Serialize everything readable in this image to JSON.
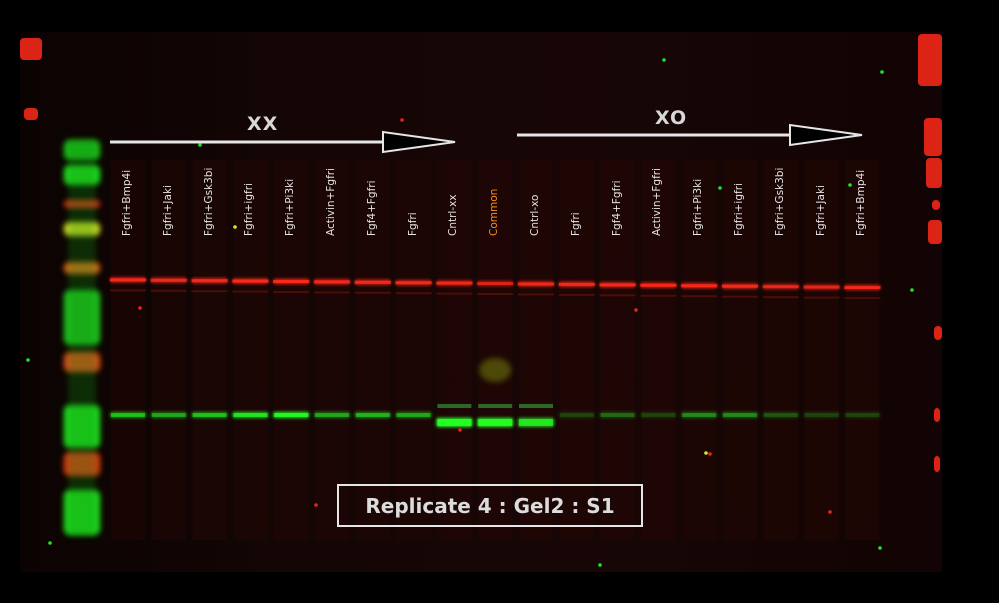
{
  "image": {
    "type": "western blot fluorescence scan",
    "colors": {
      "red_channel": "#ff2a1a",
      "green_channel": "#22ff22",
      "background": "#000000"
    }
  },
  "groups": [
    {
      "label": "XX"
    },
    {
      "label": "XO"
    }
  ],
  "lanes": [
    {
      "label": "Fgfri+Bmp4i",
      "group": "XX",
      "red": 0.85,
      "green": 0.55
    },
    {
      "label": "Fgfri+Jaki",
      "group": "XX",
      "red": 0.8,
      "green": 0.45
    },
    {
      "label": "Fgfri+Gsk3bi",
      "group": "XX",
      "red": 0.85,
      "green": 0.55
    },
    {
      "label": "Fgfri+igfri",
      "group": "XX",
      "red": 0.9,
      "green": 0.75
    },
    {
      "label": "Fgfri+Pi3ki",
      "group": "XX",
      "red": 0.9,
      "green": 0.9
    },
    {
      "label": "Activin+Fgfri",
      "group": "XX",
      "red": 0.85,
      "green": 0.45
    },
    {
      "label": "Fgf4+Fgfri",
      "group": "XX",
      "red": 0.85,
      "green": 0.5
    },
    {
      "label": "Fgfri",
      "group": "XX",
      "red": 0.85,
      "green": 0.45
    },
    {
      "label": "Cntrl-xx",
      "group": "XX",
      "red": 0.8,
      "green": 1.0
    },
    {
      "label": "Common",
      "group": "shared",
      "red": 0.65,
      "green": 0.95,
      "highlight": "#ff8c1a"
    },
    {
      "label": "Cntrl-xo",
      "group": "XO",
      "red": 0.8,
      "green": 0.75
    },
    {
      "label": "Fgfri",
      "group": "XO",
      "red": 0.85,
      "green": 0.15
    },
    {
      "label": "Fgf4+Fgfri",
      "group": "XO",
      "red": 0.85,
      "green": 0.25
    },
    {
      "label": "Activin+Fgfri",
      "group": "XO",
      "red": 0.85,
      "green": 0.15
    },
    {
      "label": "Fgfri+Pi3ki",
      "group": "XO",
      "red": 0.85,
      "green": 0.35
    },
    {
      "label": "Fgfri+igfri",
      "group": "XO",
      "red": 0.85,
      "green": 0.35
    },
    {
      "label": "Fgfri+Gsk3bi",
      "group": "XO",
      "red": 0.75,
      "green": 0.2
    },
    {
      "label": "Fgfri+Jaki",
      "group": "XO",
      "red": 0.7,
      "green": 0.15
    },
    {
      "label": "Fgfri+Bmp4i",
      "group": "XO",
      "red": 0.8,
      "green": 0.15
    }
  ],
  "caption": "Replicate 4 : Gel2 : S1"
}
